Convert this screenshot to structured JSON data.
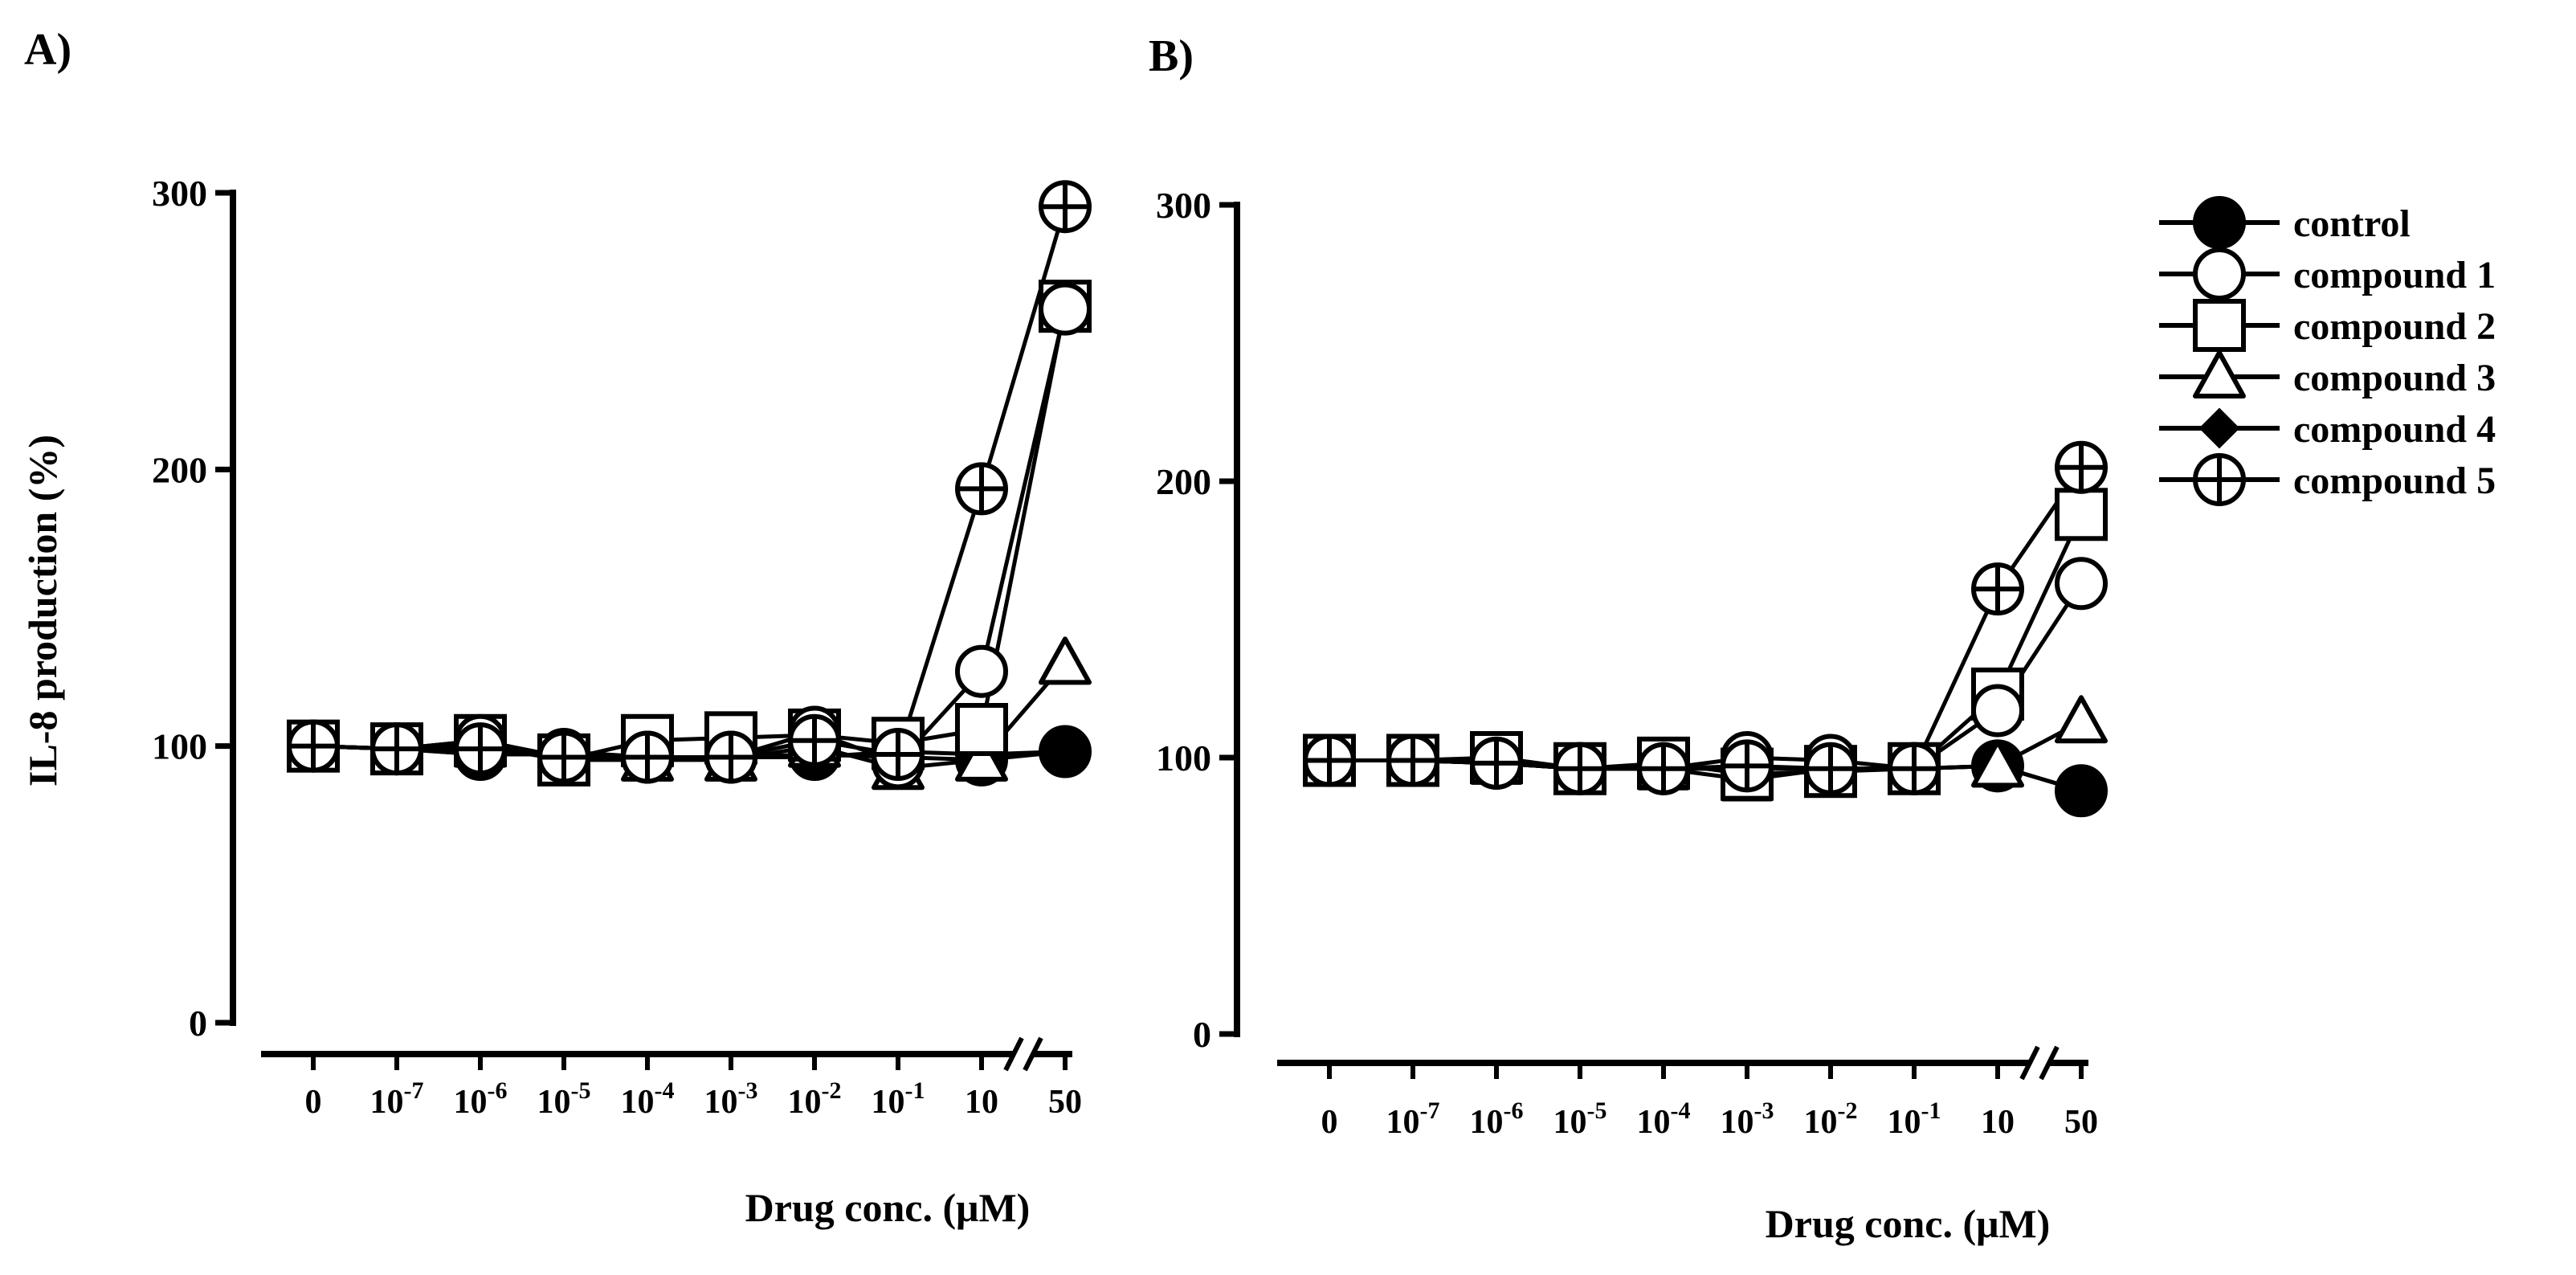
{
  "chart_data": [
    {
      "type": "line",
      "panel_label": "A)",
      "ylabel": "IL-8 production (%)",
      "xlabel_text": "Drug conc. (",
      "xlabel_unit": "μM",
      "xlabel_close": ")",
      "ylim": [
        0,
        300
      ],
      "yticks": [
        "0",
        "100",
        "200",
        "300"
      ],
      "categories": [
        {
          "base": "0",
          "exp": ""
        },
        {
          "base": "10",
          "exp": "-7"
        },
        {
          "base": "10",
          "exp": "-6"
        },
        {
          "base": "10",
          "exp": "-5"
        },
        {
          "base": "10",
          "exp": "-4"
        },
        {
          "base": "10",
          "exp": "-3"
        },
        {
          "base": "10",
          "exp": "-2"
        },
        {
          "base": "10",
          "exp": "-1"
        },
        {
          "base": "10",
          "exp": ""
        },
        {
          "base": "50",
          "exp": ""
        }
      ],
      "axis_break_after_index": 8,
      "series": [
        {
          "name": "control",
          "marker": "filled-circle",
          "values": [
            100,
            99,
            97,
            97,
            96,
            96,
            97,
            96,
            95,
            98
          ]
        },
        {
          "name": "compound 4",
          "marker": "filled-diamond",
          "values": [
            100,
            99,
            97,
            98,
            96,
            96,
            96,
            98,
            97,
            98
          ]
        },
        {
          "name": "compound 3",
          "marker": "open-triangle",
          "values": [
            100,
            99,
            100,
            95,
            95,
            95,
            100,
            92,
            95,
            130
          ]
        },
        {
          "name": "compound 2",
          "marker": "open-square",
          "values": [
            100,
            99,
            102,
            95,
            102,
            103,
            104,
            101,
            106,
            259
          ]
        },
        {
          "name": "compound 1",
          "marker": "open-circle",
          "values": [
            100,
            99,
            102,
            96,
            96,
            96,
            105,
            94,
            127,
            258
          ]
        },
        {
          "name": "compound 5",
          "marker": "crossed-circle",
          "values": [
            100,
            99,
            99,
            96,
            96,
            96,
            102,
            97,
            193,
            295
          ]
        }
      ]
    },
    {
      "type": "line",
      "panel_label": "B)",
      "xlabel_text": "Drug conc. (",
      "xlabel_unit": "μM",
      "xlabel_close": ")",
      "ylim": [
        0,
        300
      ],
      "yticks": [
        "0",
        "100",
        "200",
        "300"
      ],
      "categories": [
        {
          "base": "0",
          "exp": ""
        },
        {
          "base": "10",
          "exp": "-7"
        },
        {
          "base": "10",
          "exp": "-6"
        },
        {
          "base": "10",
          "exp": "-5"
        },
        {
          "base": "10",
          "exp": "-4"
        },
        {
          "base": "10",
          "exp": "-3"
        },
        {
          "base": "10",
          "exp": "-2"
        },
        {
          "base": "10",
          "exp": "-1"
        },
        {
          "base": "10",
          "exp": ""
        },
        {
          "base": "50",
          "exp": ""
        }
      ],
      "axis_break_after_index": 8,
      "series": [
        {
          "name": "control",
          "marker": "filled-circle",
          "values": [
            99,
            99,
            98,
            96,
            96,
            96,
            96,
            96,
            97,
            88
          ]
        },
        {
          "name": "compound 4",
          "marker": "filled-diamond",
          "values": [
            99,
            99,
            98,
            96,
            96,
            96,
            96,
            96,
            97,
            88
          ]
        },
        {
          "name": "compound 3",
          "marker": "open-triangle",
          "values": [
            99,
            99,
            98,
            96,
            96,
            92,
            96,
            96,
            97,
            113
          ]
        },
        {
          "name": "compound 2",
          "marker": "open-square",
          "values": [
            99,
            99,
            100,
            96,
            98,
            94,
            95,
            96,
            123,
            188
          ]
        },
        {
          "name": "compound 1",
          "marker": "open-circle",
          "values": [
            99,
            99,
            98,
            96,
            96,
            100,
            99,
            96,
            117,
            163
          ]
        },
        {
          "name": "compound 5",
          "marker": "crossed-circle",
          "values": [
            99,
            99,
            98,
            96,
            96,
            97,
            96,
            96,
            161,
            205
          ]
        }
      ]
    }
  ],
  "legend": {
    "placement": "right",
    "entries": [
      {
        "label": "control",
        "marker": "filled-circle"
      },
      {
        "label": "compound 1",
        "marker": "open-circle"
      },
      {
        "label": "compound 2",
        "marker": "open-square"
      },
      {
        "label": "compound 3",
        "marker": "open-triangle"
      },
      {
        "label": "compound 4",
        "marker": "filled-diamond"
      },
      {
        "label": "compound 5",
        "marker": "crossed-circle"
      }
    ]
  },
  "colors": {
    "ink": "#000000",
    "background": "#ffffff"
  }
}
